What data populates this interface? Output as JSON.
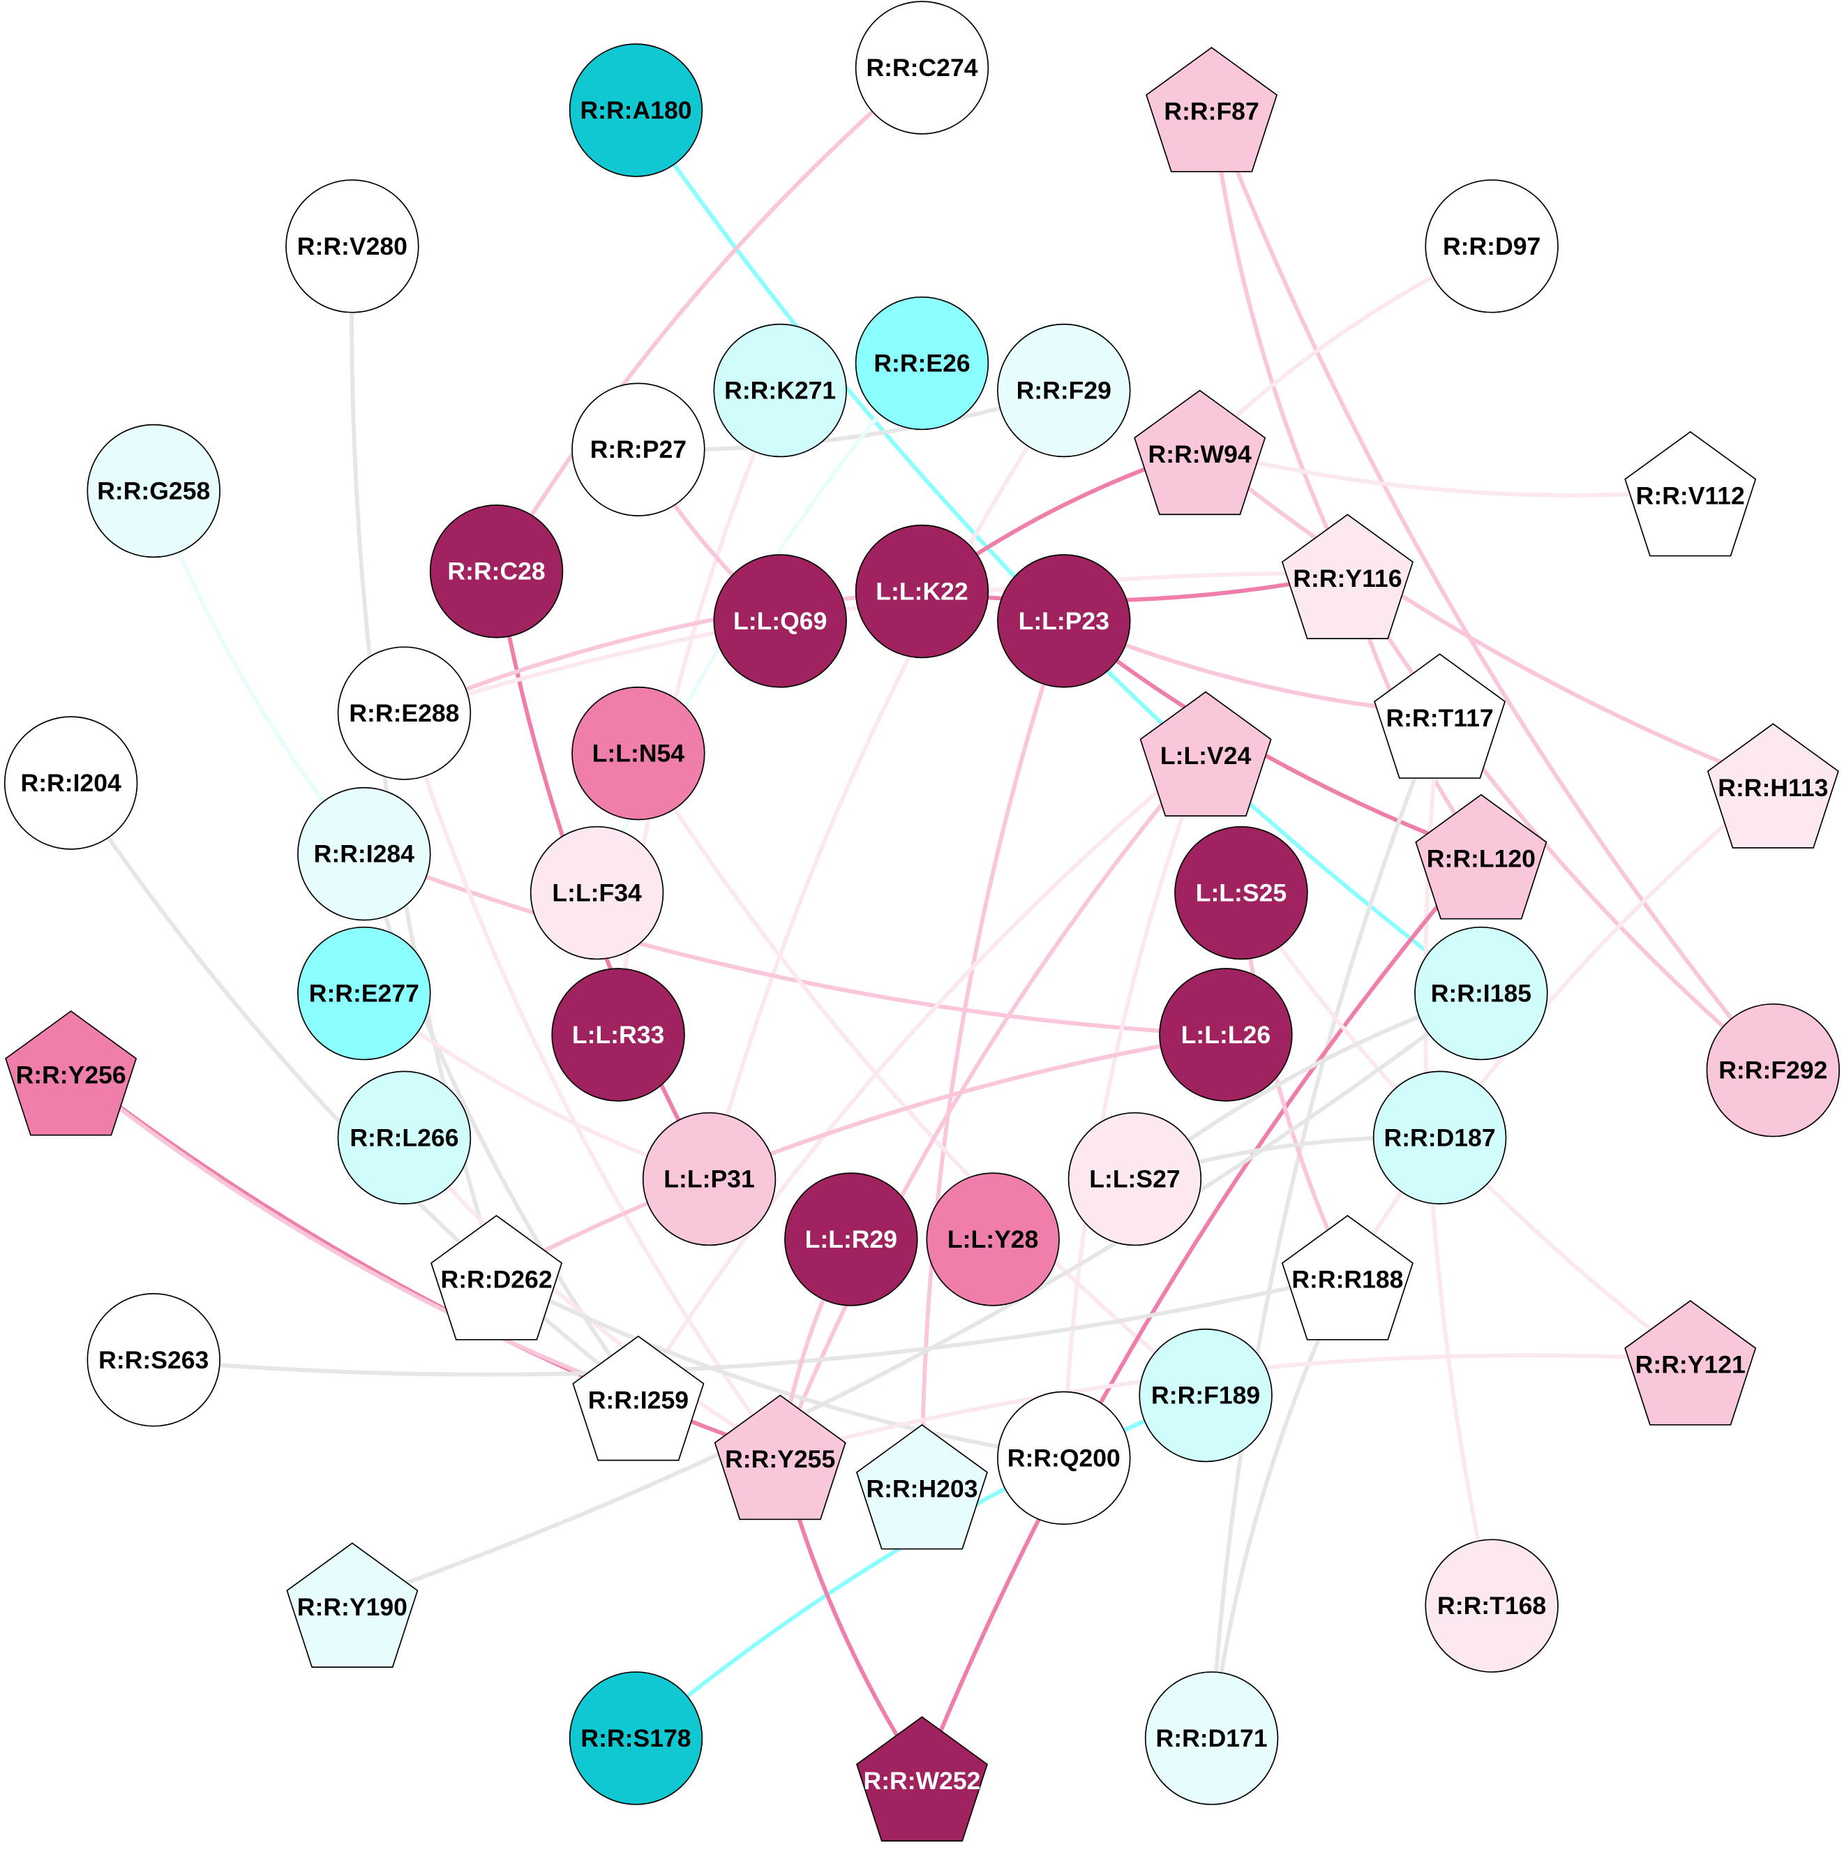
{
  "colors": {
    "dark_magenta": "#A0225E",
    "medium_pink": "#F07EAA",
    "light_pink": "#F9C6DB",
    "pale_pink": "#FCE8F0",
    "dark_cyan": "#10C8D2",
    "cyan": "#8BFFFF",
    "light_cyan": "#D2FDFD",
    "pale_cyan": "#E8FEFE",
    "white": "#FFFFFF",
    "edge_gray": "#E6E6E6"
  },
  "nodes": [
    {
      "id": "R:R:A180",
      "shape": "circle",
      "fill": "#10C8D2",
      "text": "#000000"
    },
    {
      "id": "R:R:C274",
      "shape": "circle",
      "fill": "#FFFFFF",
      "text": "#000000"
    },
    {
      "id": "R:R:F87",
      "shape": "pentagon",
      "fill": "#F9C6DB",
      "text": "#000000"
    },
    {
      "id": "R:R:V280",
      "shape": "circle",
      "fill": "#FFFFFF",
      "text": "#000000"
    },
    {
      "id": "R:R:D97",
      "shape": "circle",
      "fill": "#FFFFFF",
      "text": "#000000"
    },
    {
      "id": "R:R:K271",
      "shape": "circle",
      "fill": "#D2FDFD",
      "text": "#000000"
    },
    {
      "id": "R:R:E26",
      "shape": "circle",
      "fill": "#8BFFFF",
      "text": "#000000"
    },
    {
      "id": "R:R:F29",
      "shape": "circle",
      "fill": "#E8FEFE",
      "text": "#000000"
    },
    {
      "id": "R:R:P27",
      "shape": "circle",
      "fill": "#FFFFFF",
      "text": "#000000"
    },
    {
      "id": "R:R:W94",
      "shape": "pentagon",
      "fill": "#F9C6DB",
      "text": "#000000"
    },
    {
      "id": "R:R:V112",
      "shape": "pentagon",
      "fill": "#FFFFFF",
      "text": "#000000"
    },
    {
      "id": "R:R:G258",
      "shape": "circle",
      "fill": "#E8FEFE",
      "text": "#000000"
    },
    {
      "id": "R:R:C28",
      "shape": "circle",
      "fill": "#A0225E",
      "text": "#FFFFFF"
    },
    {
      "id": "L:L:Q69",
      "shape": "circle",
      "fill": "#A0225E",
      "text": "#FFFFFF"
    },
    {
      "id": "L:L:K22",
      "shape": "circle",
      "fill": "#A0225E",
      "text": "#FFFFFF"
    },
    {
      "id": "L:L:P23",
      "shape": "circle",
      "fill": "#A0225E",
      "text": "#FFFFFF"
    },
    {
      "id": "R:R:Y116",
      "shape": "pentagon",
      "fill": "#FCE8F0",
      "text": "#000000"
    },
    {
      "id": "R:R:E288",
      "shape": "circle",
      "fill": "#FFFFFF",
      "text": "#000000"
    },
    {
      "id": "L:L:N54",
      "shape": "circle",
      "fill": "#F07EAA",
      "text": "#000000"
    },
    {
      "id": "L:L:V24",
      "shape": "pentagon",
      "fill": "#F9C6DB",
      "text": "#000000"
    },
    {
      "id": "R:R:T117",
      "shape": "pentagon",
      "fill": "#FFFFFF",
      "text": "#000000"
    },
    {
      "id": "R:R:I204",
      "shape": "circle",
      "fill": "#FFFFFF",
      "text": "#000000"
    },
    {
      "id": "R:R:H113",
      "shape": "pentagon",
      "fill": "#FCE8F0",
      "text": "#000000"
    },
    {
      "id": "R:R:I284",
      "shape": "circle",
      "fill": "#E8FEFE",
      "text": "#000000"
    },
    {
      "id": "L:L:F34",
      "shape": "circle",
      "fill": "#FCE8F0",
      "text": "#000000"
    },
    {
      "id": "R:R:L120",
      "shape": "pentagon",
      "fill": "#F9C6DB",
      "text": "#000000"
    },
    {
      "id": "L:L:S25",
      "shape": "circle",
      "fill": "#A0225E",
      "text": "#FFFFFF"
    },
    {
      "id": "R:R:E277",
      "shape": "circle",
      "fill": "#8BFFFF",
      "text": "#000000"
    },
    {
      "id": "L:L:R33",
      "shape": "circle",
      "fill": "#A0225E",
      "text": "#FFFFFF"
    },
    {
      "id": "L:L:L26",
      "shape": "circle",
      "fill": "#A0225E",
      "text": "#FFFFFF"
    },
    {
      "id": "R:R:I185",
      "shape": "circle",
      "fill": "#D2FDFD",
      "text": "#000000"
    },
    {
      "id": "R:R:Y256",
      "shape": "pentagon",
      "fill": "#F07EAA",
      "text": "#000000"
    },
    {
      "id": "R:R:F292",
      "shape": "circle",
      "fill": "#F9C6DB",
      "text": "#000000"
    },
    {
      "id": "R:R:L266",
      "shape": "circle",
      "fill": "#D2FDFD",
      "text": "#000000"
    },
    {
      "id": "L:L:P31",
      "shape": "circle",
      "fill": "#F9C6DB",
      "text": "#000000"
    },
    {
      "id": "L:L:S27",
      "shape": "circle",
      "fill": "#FCE8F0",
      "text": "#000000"
    },
    {
      "id": "R:R:D187",
      "shape": "circle",
      "fill": "#D2FDFD",
      "text": "#000000"
    },
    {
      "id": "L:L:R29",
      "shape": "circle",
      "fill": "#A0225E",
      "text": "#FFFFFF"
    },
    {
      "id": "L:L:Y28",
      "shape": "circle",
      "fill": "#F07EAA",
      "text": "#000000"
    },
    {
      "id": "R:R:D262",
      "shape": "pentagon",
      "fill": "#FFFFFF",
      "text": "#000000"
    },
    {
      "id": "R:R:R188",
      "shape": "pentagon",
      "fill": "#FFFFFF",
      "text": "#000000"
    },
    {
      "id": "R:R:S263",
      "shape": "circle",
      "fill": "#FFFFFF",
      "text": "#000000"
    },
    {
      "id": "R:R:I259",
      "shape": "pentagon",
      "fill": "#FFFFFF",
      "text": "#000000"
    },
    {
      "id": "R:R:Y121",
      "shape": "pentagon",
      "fill": "#F9C6DB",
      "text": "#000000"
    },
    {
      "id": "R:R:F189",
      "shape": "circle",
      "fill": "#D2FDFD",
      "text": "#000000"
    },
    {
      "id": "R:R:Y255",
      "shape": "pentagon",
      "fill": "#F9C6DB",
      "text": "#000000"
    },
    {
      "id": "R:R:H203",
      "shape": "pentagon",
      "fill": "#E8FEFE",
      "text": "#000000"
    },
    {
      "id": "R:R:Q200",
      "shape": "circle",
      "fill": "#FFFFFF",
      "text": "#000000"
    },
    {
      "id": "R:R:Y190",
      "shape": "pentagon",
      "fill": "#E8FEFE",
      "text": "#000000"
    },
    {
      "id": "R:R:T168",
      "shape": "circle",
      "fill": "#FCE8F0",
      "text": "#000000"
    },
    {
      "id": "R:R:S178",
      "shape": "circle",
      "fill": "#10C8D2",
      "text": "#000000"
    },
    {
      "id": "R:R:W252",
      "shape": "pentagon",
      "fill": "#A0225E",
      "text": "#FFFFFF"
    },
    {
      "id": "R:R:D171",
      "shape": "circle",
      "fill": "#E8FEFE",
      "text": "#000000"
    }
  ],
  "edges": [
    {
      "source": "R:R:A180",
      "target": "R:R:I185",
      "color": "#8BFFFF"
    },
    {
      "source": "R:R:C274",
      "target": "R:R:C28",
      "color": "#F9C6DB"
    },
    {
      "source": "R:R:F87",
      "target": "R:R:Y116",
      "color": "#F9C6DB"
    },
    {
      "source": "R:R:F87",
      "target": "R:R:F292",
      "color": "#F9C6DB"
    },
    {
      "source": "R:R:D97",
      "target": "R:R:W94",
      "color": "#FCE8F0"
    },
    {
      "source": "R:R:V280",
      "target": "R:R:D262",
      "color": "#E6E6E6"
    },
    {
      "source": "R:R:K271",
      "target": "L:L:R33",
      "color": "#FCE8F0"
    },
    {
      "source": "R:R:P27",
      "target": "R:R:F29",
      "color": "#E6E6E6"
    },
    {
      "source": "R:R:E26",
      "target": "L:L:F34",
      "color": "#E8FEFE"
    },
    {
      "source": "R:R:F29",
      "target": "L:L:P31",
      "color": "#FCE8F0"
    },
    {
      "source": "R:R:P27",
      "target": "L:L:Q69",
      "color": "#F9C6DB"
    },
    {
      "source": "R:R:W94",
      "target": "L:L:K22",
      "color": "#F07EAA"
    },
    {
      "source": "R:R:W94",
      "target": "R:R:V112",
      "color": "#FCE8F0"
    },
    {
      "source": "R:R:W94",
      "target": "R:R:H113",
      "color": "#F9C6DB"
    },
    {
      "source": "R:R:G258",
      "target": "R:R:I284",
      "color": "#E8FEFE"
    },
    {
      "source": "R:R:C28",
      "target": "L:L:P31",
      "color": "#F07EAA"
    },
    {
      "source": "L:L:K22",
      "target": "R:R:Y116",
      "color": "#F07EAA"
    },
    {
      "source": "L:L:K22",
      "target": "R:R:E288",
      "color": "#F9C6DB"
    },
    {
      "source": "L:L:P23",
      "target": "R:R:L120",
      "color": "#F07EAA"
    },
    {
      "source": "L:L:P23",
      "target": "R:R:T117",
      "color": "#F9C6DB"
    },
    {
      "source": "L:L:P23",
      "target": "R:R:H203",
      "color": "#F9C6DB"
    },
    {
      "source": "R:R:Y116",
      "target": "R:R:E288",
      "color": "#FCE8F0"
    },
    {
      "source": "R:R:Y116",
      "target": "R:R:L120",
      "color": "#F9C6DB"
    },
    {
      "source": "R:R:Y116",
      "target": "R:R:F292",
      "color": "#F9C6DB"
    },
    {
      "source": "R:R:T117",
      "target": "R:R:D171",
      "color": "#E6E6E6"
    },
    {
      "source": "R:R:T117",
      "target": "R:R:T168",
      "color": "#FCE8F0"
    },
    {
      "source": "R:R:H113",
      "target": "R:R:R188",
      "color": "#FCE8F0"
    },
    {
      "source": "R:R:I204",
      "target": "R:R:I259",
      "color": "#E6E6E6"
    },
    {
      "source": "R:R:I284",
      "target": "L:L:L26",
      "color": "#F9C6DB"
    },
    {
      "source": "R:R:I284",
      "target": "R:R:I259",
      "color": "#E6E6E6"
    },
    {
      "source": "R:R:E288",
      "target": "R:R:Y255",
      "color": "#FCE8F0"
    },
    {
      "source": "L:L:N54",
      "target": "R:R:F189",
      "color": "#FCE8F0"
    },
    {
      "source": "L:L:V24",
      "target": "R:R:I259",
      "color": "#FCE8F0"
    },
    {
      "source": "L:L:V24",
      "target": "R:R:Y255",
      "color": "#F9C6DB"
    },
    {
      "source": "L:L:V24",
      "target": "R:R:Q200",
      "color": "#FCE8F0"
    },
    {
      "source": "R:R:L120",
      "target": "R:R:W252",
      "color": "#F07EAA"
    },
    {
      "source": "L:L:S25",
      "target": "R:R:R188",
      "color": "#F9C6DB"
    },
    {
      "source": "L:L:S25",
      "target": "R:R:Y121",
      "color": "#FCE8F0"
    },
    {
      "source": "R:R:I185",
      "target": "L:L:S27",
      "color": "#E6E6E6"
    },
    {
      "source": "R:R:E277",
      "target": "L:L:P31",
      "color": "#FCE8F0"
    },
    {
      "source": "R:R:Y256",
      "target": "R:R:Y255",
      "color": "#F07EAA"
    },
    {
      "source": "R:R:Y256",
      "target": "R:R:I259",
      "color": "#F9C6DB"
    },
    {
      "source": "L:L:L26",
      "target": "R:R:D262",
      "color": "#F9C6DB"
    },
    {
      "source": "R:R:L266",
      "target": "R:R:Y255",
      "color": "#FCE8F0"
    },
    {
      "source": "R:R:D262",
      "target": "R:R:Q200",
      "color": "#E6E6E6"
    },
    {
      "source": "R:R:S263",
      "target": "R:R:R188",
      "color": "#E6E6E6"
    },
    {
      "source": "R:R:D187",
      "target": "L:L:S27",
      "color": "#E6E6E6"
    },
    {
      "source": "R:R:R188",
      "target": "R:R:D171",
      "color": "#E6E6E6"
    },
    {
      "source": "R:R:Y121",
      "target": "R:R:Y255",
      "color": "#FCE8F0"
    },
    {
      "source": "R:R:F189",
      "target": "R:R:S178",
      "color": "#8BFFFF"
    },
    {
      "source": "R:R:Y255",
      "target": "R:R:W252",
      "color": "#F07EAA"
    },
    {
      "source": "R:R:Y190",
      "target": "R:R:I185",
      "color": "#E6E6E6"
    },
    {
      "source": "L:L:R29",
      "target": "R:R:Y255",
      "color": "#F9C6DB"
    }
  ]
}
